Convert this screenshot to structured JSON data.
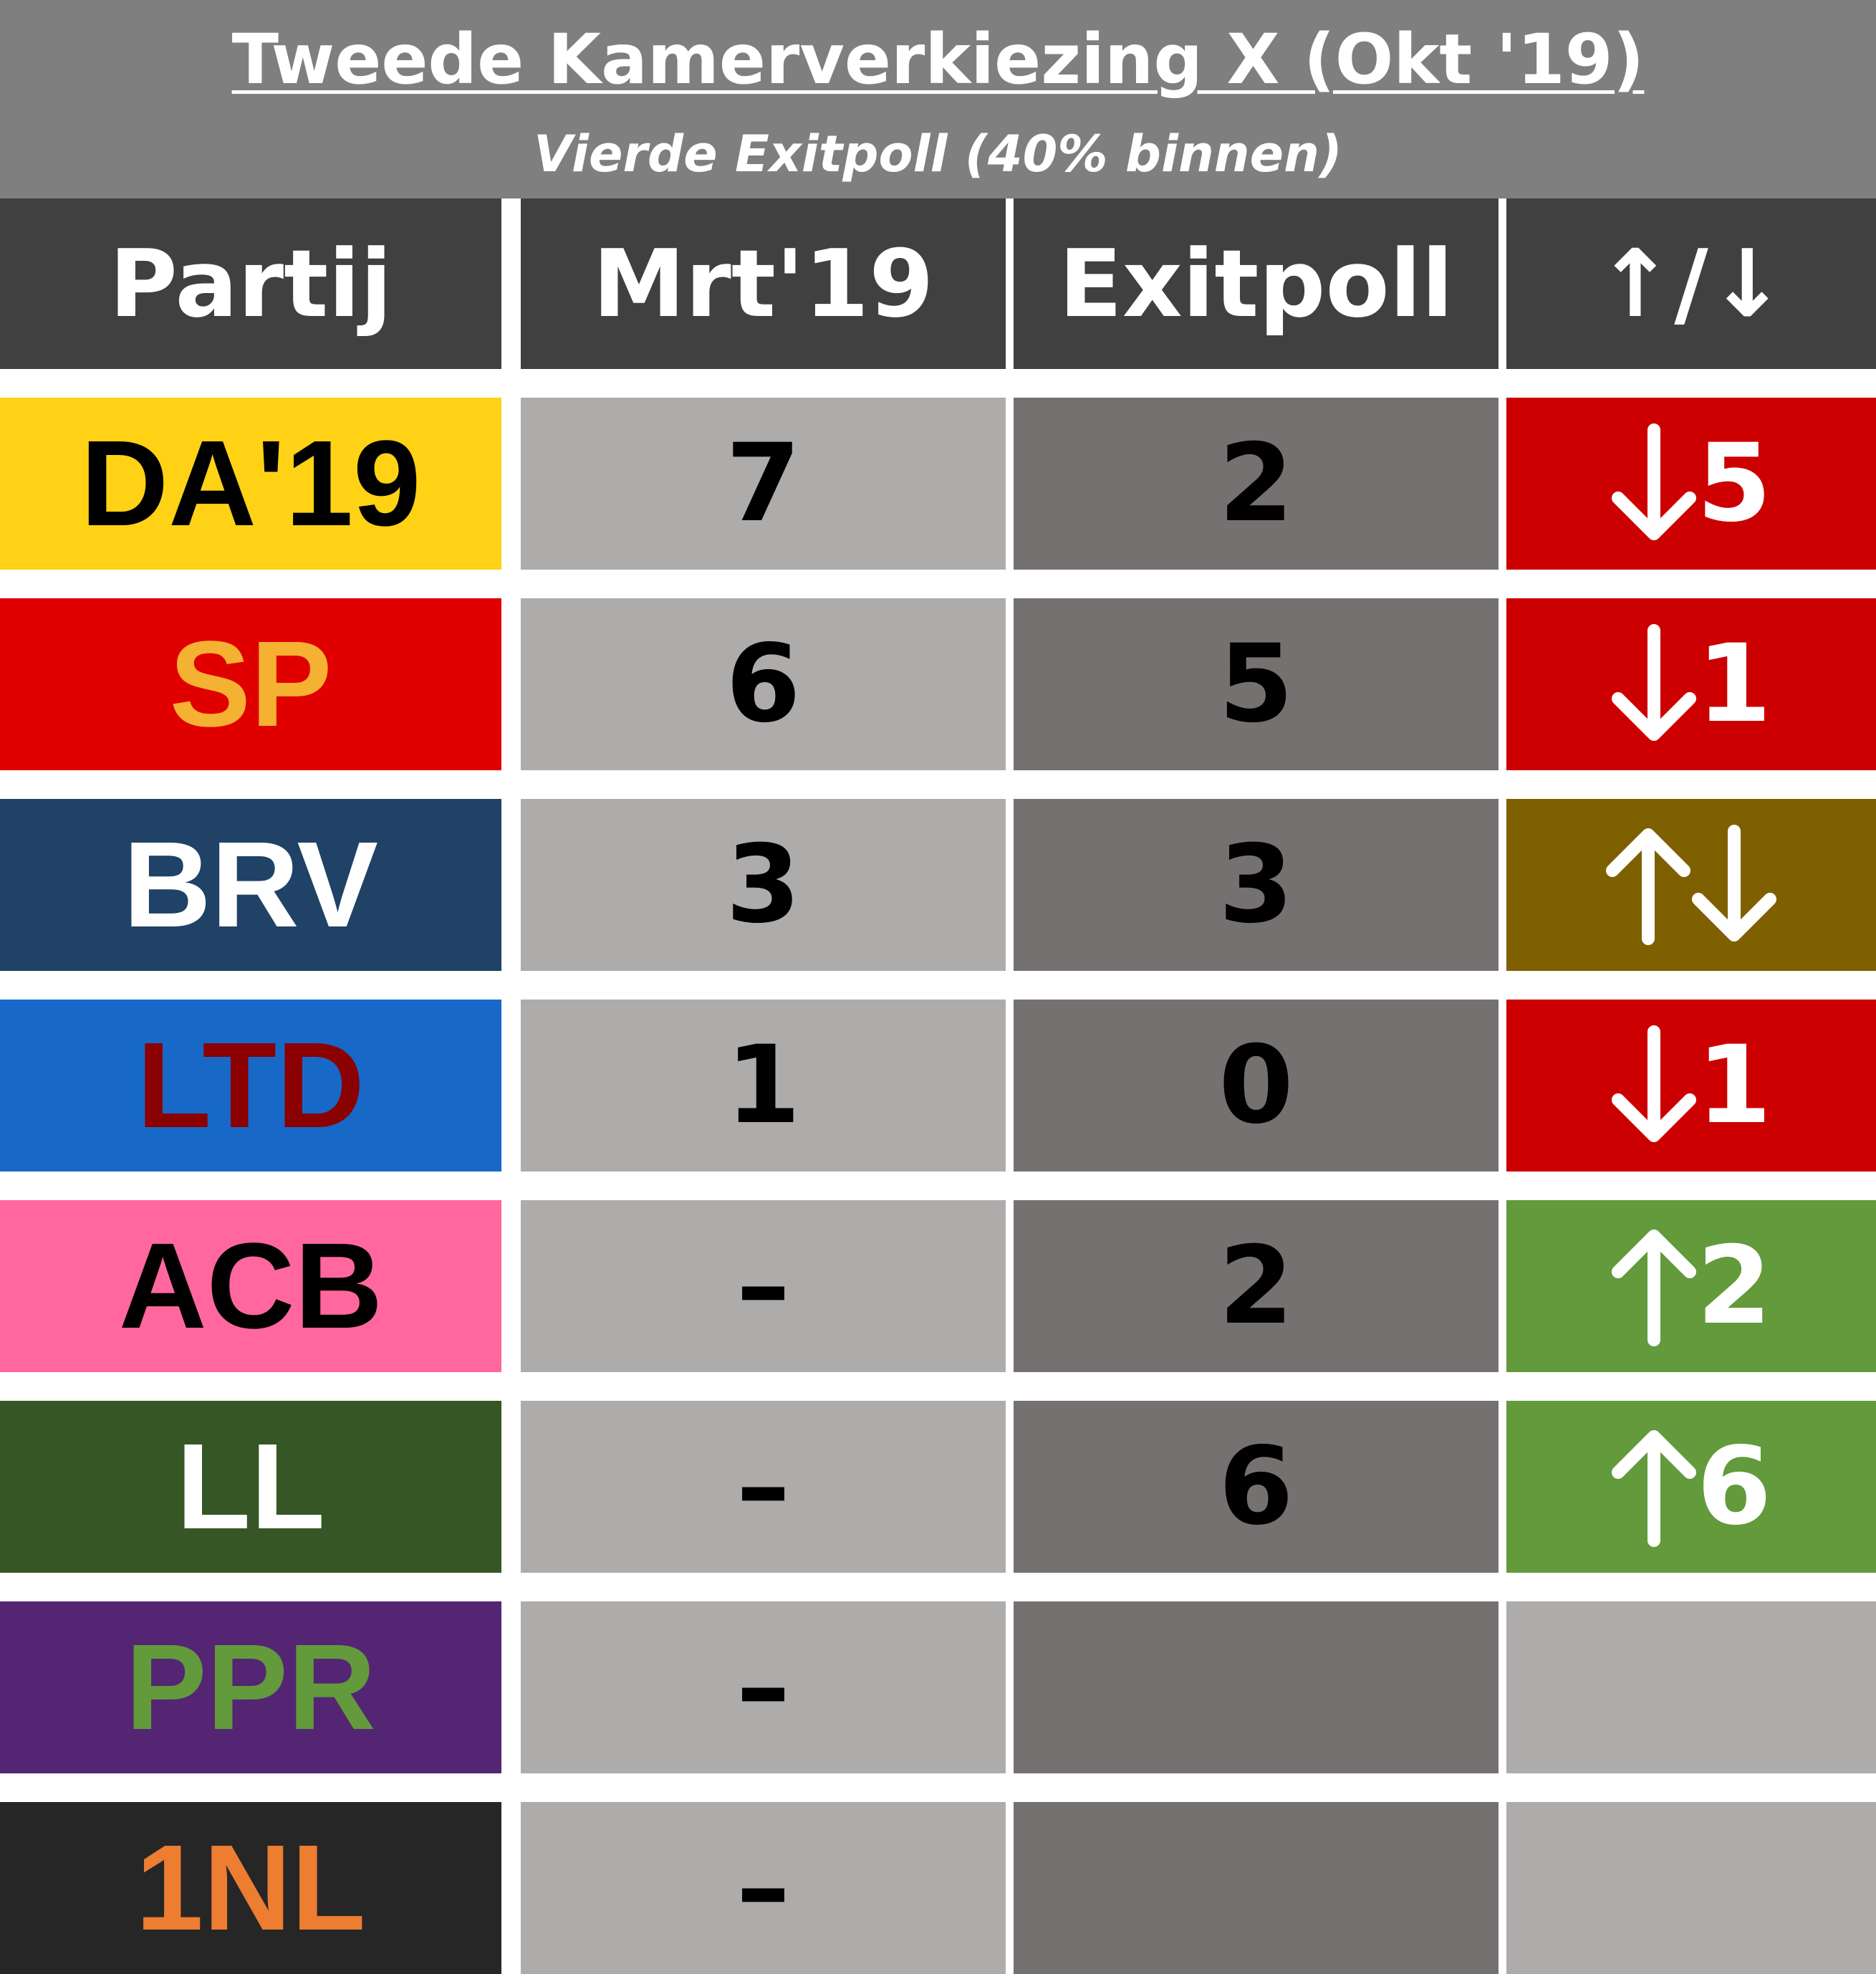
{
  "header": {
    "title": "Tweede Kamerverkiezing X (Okt '19)",
    "subtitle": "Vierde Exitpoll (40% binnen)"
  },
  "columns": [
    "Partij",
    "Mrt'19",
    "Exitpoll",
    "↑/↓"
  ],
  "colors": {
    "header_bg": "#7f7f7f",
    "column_header_bg": "#404040",
    "prev_col_bg": "#aeabab",
    "exit_col_bg": "#767171",
    "down": "#cc0000",
    "up": "#629a3c",
    "neutral": "#7f6000"
  },
  "chart_data": {
    "type": "table",
    "title": "Tweede Kamerverkiezing X (Okt '19)",
    "subtitle": "Vierde Exitpoll (40% binnen)",
    "columns": [
      "Partij",
      "Mrt'19",
      "Exitpoll",
      "↑/↓"
    ],
    "rows": [
      {
        "party": "DA'19",
        "bg": "#ffd215",
        "fg": "#000000",
        "prev": "7",
        "exit": "2",
        "change": "5",
        "direction": "down"
      },
      {
        "party": "SP",
        "bg": "#e00000",
        "fg": "#f4b132",
        "prev": "6",
        "exit": "5",
        "change": "1",
        "direction": "down"
      },
      {
        "party": "BRV",
        "bg": "#1f4266",
        "fg": "#ffffff",
        "prev": "3",
        "exit": "3",
        "change": "",
        "direction": "both"
      },
      {
        "party": "LTD",
        "bg": "#1868c8",
        "fg": "#8b0000",
        "prev": "1",
        "exit": "0",
        "change": "1",
        "direction": "down"
      },
      {
        "party": "ACB",
        "bg": "#ff679e",
        "fg": "#000000",
        "prev": "–",
        "exit": "2",
        "change": "2",
        "direction": "up"
      },
      {
        "party": "LL",
        "bg": "#375625",
        "fg": "#ffffff",
        "prev": "–",
        "exit": "6",
        "change": "6",
        "direction": "up"
      },
      {
        "party": "PPR",
        "bg": "#532573",
        "fg": "#629a3c",
        "prev": "–",
        "exit": "",
        "change": "",
        "direction": "none"
      },
      {
        "party": "1NL",
        "bg": "#262626",
        "fg": "#ed7d31",
        "prev": "–",
        "exit": "",
        "change": "",
        "direction": "none"
      }
    ]
  }
}
